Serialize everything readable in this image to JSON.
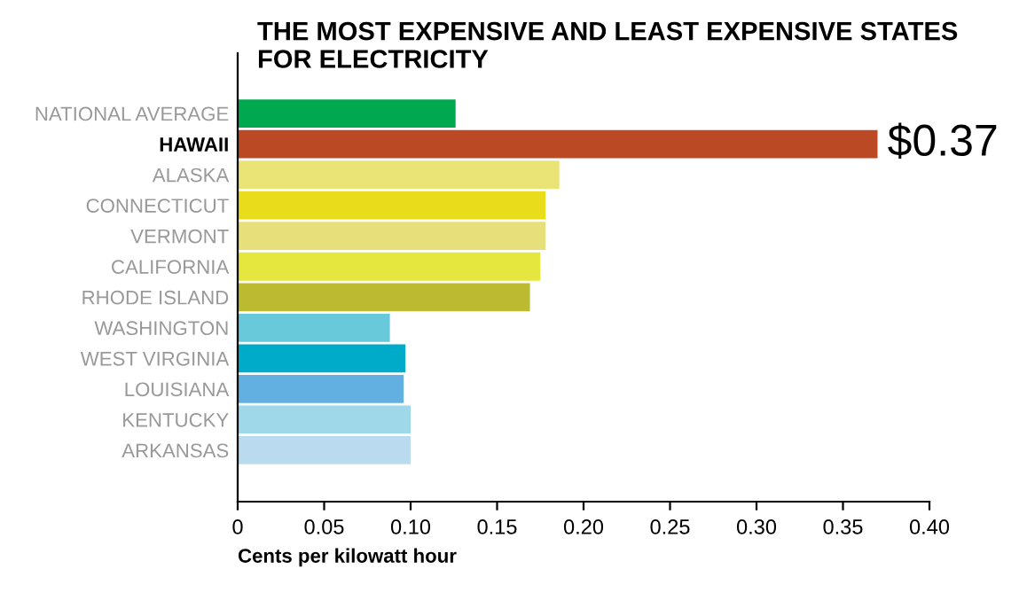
{
  "chart_data": {
    "type": "bar",
    "orientation": "horizontal",
    "title": "THE MOST EXPENSIVE AND LEAST EXPENSIVE STATES\nFOR ELECTRICITY",
    "xlabel": "Cents per kilowatt hour",
    "categories": [
      "NATIONAL AVERAGE",
      "HAWAII",
      "ALASKA",
      "CONNECTICUT",
      "VERMONT",
      "CALIFORNIA",
      "RHODE ISLAND",
      "WASHINGTON",
      "WEST VIRGINIA",
      "LOUISIANA",
      "KENTUCKY",
      "ARKANSAS"
    ],
    "values": [
      0.126,
      0.37,
      0.186,
      0.178,
      0.178,
      0.175,
      0.169,
      0.088,
      0.097,
      0.096,
      0.1,
      0.1
    ],
    "value_labels": [
      null,
      "$0.37",
      null,
      null,
      null,
      null,
      null,
      null,
      null,
      null,
      null,
      null
    ],
    "colors": [
      "#00a84f",
      "#bb4a24",
      "#eae477",
      "#e9dc1b",
      "#e6df7a",
      "#e5e63e",
      "#bcba30",
      "#68c9db",
      "#00abc9",
      "#62b0e2",
      "#9fd9e9",
      "#badbef"
    ],
    "xlim": [
      0,
      0.4
    ],
    "xticks": [
      0,
      0.05,
      {
        "value": 0.1,
        "label": "0.10"
      },
      0.15,
      {
        "value": 0.2,
        "label": "0.20"
      },
      0.25,
      {
        "value": 0.3,
        "label": "0.30"
      },
      0.35,
      {
        "value": 0.4,
        "label": "0.40"
      }
    ],
    "grid": false,
    "legend": false
  }
}
